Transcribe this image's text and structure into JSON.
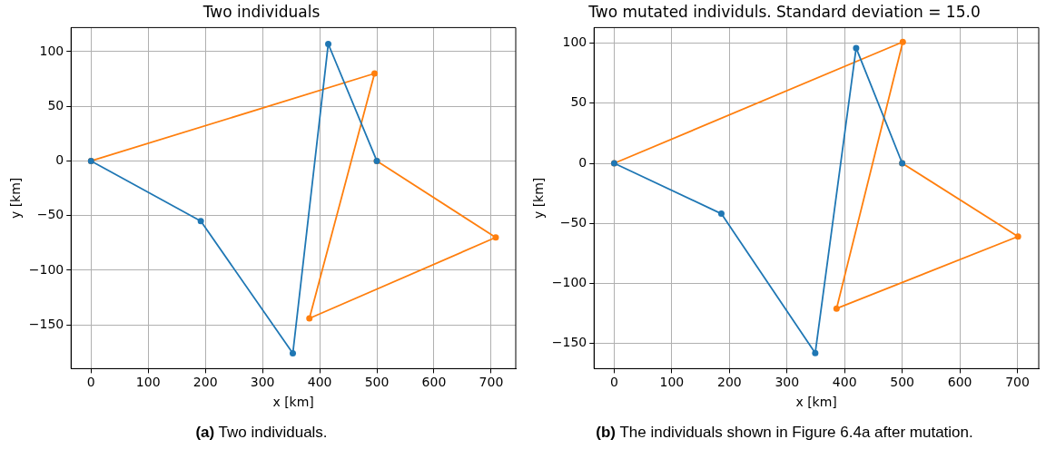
{
  "chart_data": [
    {
      "type": "line",
      "title": "Two individuals",
      "xlabel": "x [km]",
      "ylabel": "y [km]",
      "annotations": [
        "(a) Two individuals."
      ],
      "grid": true,
      "marker": "circle",
      "legend": false,
      "xlim": [
        -35,
        743
      ],
      "ylim": [
        -190,
        122
      ],
      "xticks": [
        0,
        100,
        200,
        300,
        400,
        500,
        600,
        700
      ],
      "yticks": [
        {
          "value": -150,
          "label": "−150"
        },
        {
          "value": -100,
          "label": "−100"
        },
        {
          "value": -50,
          "label": "−50"
        },
        0,
        50,
        100
      ],
      "series": [
        {
          "color": "#1f77b4",
          "x": [
            0,
            192,
            353,
            415,
            500
          ],
          "values": [
            0,
            -55,
            -176,
            107,
            0
          ]
        },
        {
          "color": "#ff7f0e",
          "x": [
            0,
            496,
            382,
            708,
            500
          ],
          "values": [
            0,
            80,
            -144,
            -70,
            0
          ]
        }
      ]
    },
    {
      "type": "line",
      "title": "Two mutated individuls. Standard deviation = 15.0",
      "xlabel": "x [km]",
      "ylabel": "y [km]",
      "annotations": [
        "(b) The individuals shown in Figure 6.4a after mutation."
      ],
      "grid": true,
      "marker": "circle",
      "legend": false,
      "xlim": [
        -35,
        737
      ],
      "ylim": [
        -171,
        113
      ],
      "xticks": [
        0,
        100,
        200,
        300,
        400,
        500,
        600,
        700
      ],
      "yticks": [
        {
          "value": -150,
          "label": "−150"
        },
        {
          "value": -100,
          "label": "−100"
        },
        {
          "value": -50,
          "label": "−50"
        },
        0,
        50,
        100
      ],
      "series": [
        {
          "color": "#1f77b4",
          "x": [
            0,
            186,
            349,
            420,
            500
          ],
          "values": [
            0,
            -42,
            -158,
            96,
            0
          ]
        },
        {
          "color": "#ff7f0e",
          "x": [
            0,
            501,
            386,
            701,
            500
          ],
          "values": [
            0,
            101,
            -121,
            -61,
            0
          ]
        }
      ]
    }
  ]
}
